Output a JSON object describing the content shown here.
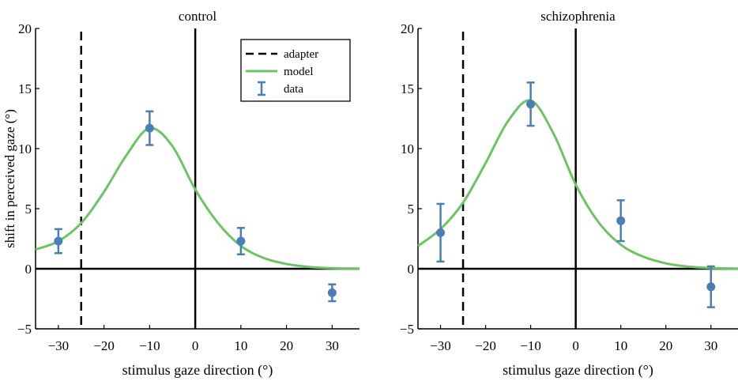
{
  "chart_data": [
    {
      "type": "line",
      "title": "control",
      "xlabel": "stimulus gaze direction (°)",
      "ylabel": "shift in perceived gaze (°)",
      "xlim": [
        -35,
        36
      ],
      "ylim": [
        -5,
        20
      ],
      "xticks": [
        -30,
        -20,
        -10,
        0,
        10,
        20,
        30
      ],
      "yticks": [
        -5,
        0,
        5,
        10,
        15,
        20
      ],
      "xtick_labels": [
        "−30",
        "−20",
        "−10",
        "0",
        "10",
        "20",
        "30"
      ],
      "ytick_labels": [
        "−5",
        "0",
        "5",
        "10",
        "15",
        "20"
      ],
      "adapter_x": -25,
      "reference_lines": {
        "x": 0,
        "y": 0
      },
      "series": [
        {
          "name": "model",
          "kind": "line",
          "color": "#6cc462",
          "x": [
            -35,
            -30,
            -25,
            -20,
            -15,
            -10,
            -5,
            0,
            5,
            10,
            15,
            20,
            25,
            30,
            36
          ],
          "y": [
            1.6,
            2.3,
            3.8,
            6.4,
            9.5,
            11.7,
            10.2,
            6.6,
            3.8,
            1.9,
            0.9,
            0.4,
            0.15,
            0.05,
            0.02
          ]
        },
        {
          "name": "data",
          "kind": "errorbar",
          "color": "#4a7fb6",
          "x": [
            -30,
            -10,
            10,
            30
          ],
          "y": [
            2.3,
            11.7,
            2.3,
            -2.0
          ],
          "err_low": [
            1.0,
            1.4,
            1.1,
            0.7
          ],
          "err_high": [
            1.0,
            1.4,
            1.1,
            0.7
          ]
        }
      ],
      "legend": {
        "placement": "top-right",
        "entries": [
          {
            "label": "adapter",
            "style": "dashed",
            "color": "#000000"
          },
          {
            "label": "model",
            "style": "line",
            "color": "#6cc462"
          },
          {
            "label": "data",
            "style": "errorbar",
            "color": "#4a7fb6"
          }
        ]
      }
    },
    {
      "type": "line",
      "title": "schizophrenia",
      "xlabel": "stimulus gaze direction (°)",
      "ylabel": "",
      "xlim": [
        -35,
        36
      ],
      "ylim": [
        -5,
        20
      ],
      "xticks": [
        -30,
        -20,
        -10,
        0,
        10,
        20,
        30
      ],
      "yticks": [
        -5,
        0,
        5,
        10,
        15,
        20
      ],
      "xtick_labels": [
        "−30",
        "−20",
        "−10",
        "0",
        "10",
        "20",
        "30"
      ],
      "ytick_labels": [
        "−5",
        "0",
        "5",
        "10",
        "15",
        "20"
      ],
      "adapter_x": -25,
      "reference_lines": {
        "x": 0,
        "y": 0
      },
      "series": [
        {
          "name": "model",
          "kind": "line",
          "color": "#6cc462",
          "x": [
            -35,
            -30,
            -25,
            -20,
            -15,
            -10,
            -5,
            0,
            5,
            10,
            15,
            20,
            25,
            30,
            36
          ],
          "y": [
            1.9,
            3.3,
            5.5,
            8.8,
            12.3,
            14.0,
            11.3,
            7.0,
            3.9,
            2.0,
            1.0,
            0.45,
            0.18,
            0.06,
            0.02
          ]
        },
        {
          "name": "data",
          "kind": "errorbar",
          "color": "#4a7fb6",
          "x": [
            -30,
            -10,
            10,
            30
          ],
          "y": [
            3.0,
            13.7,
            4.0,
            -1.5
          ],
          "err_low": [
            2.4,
            1.8,
            1.7,
            1.7
          ],
          "err_high": [
            2.4,
            1.8,
            1.7,
            1.7
          ]
        }
      ]
    }
  ]
}
